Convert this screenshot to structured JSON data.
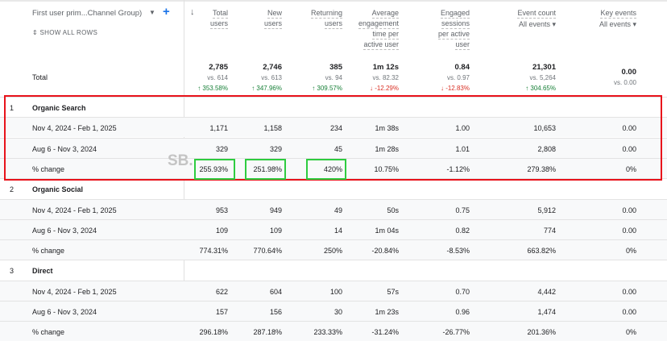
{
  "header": {
    "dimension": "First user prim...Channel Group)",
    "show_all_rows": "SHOW ALL ROWS",
    "columns": [
      {
        "label": [
          "Total",
          "users"
        ]
      },
      {
        "label": [
          "New",
          "users"
        ]
      },
      {
        "label": [
          "Returning",
          "users"
        ]
      },
      {
        "label": [
          "Average",
          "engagement",
          "time per",
          "active user"
        ]
      },
      {
        "label": [
          "Engaged",
          "sessions",
          "per active",
          "user"
        ]
      },
      {
        "label": [
          "Event count"
        ],
        "selector": "All events"
      },
      {
        "label": [
          "Key events"
        ],
        "selector": "All events"
      }
    ]
  },
  "total": {
    "label": "Total",
    "values": [
      "2,785",
      "2,746",
      "385",
      "1m 12s",
      "0.84",
      "21,301",
      "0.00"
    ],
    "vs": [
      "vs. 614",
      "vs. 613",
      "vs. 94",
      "vs. 82.32",
      "vs. 0.97",
      "vs. 5,264",
      "vs. 0.00"
    ],
    "change": [
      "↑ 353.58%",
      "↑ 347.96%",
      "↑ 309.57%",
      "↓ -12.29%",
      "↓ -12.83%",
      "↑ 304.65%",
      ""
    ],
    "change_dir": [
      "up",
      "up",
      "up",
      "down",
      "down",
      "up",
      ""
    ]
  },
  "watermark": "SB.",
  "colors": {
    "highlight_box": "#e8131b",
    "cell_highlight": "#2ecc40",
    "up": "#188038",
    "down": "#d93025"
  },
  "groups": [
    {
      "num": "1",
      "name": "Organic Search",
      "rows": [
        {
          "label": "Nov 4, 2024 - Feb 1, 2025",
          "values": [
            "1,171",
            "1,158",
            "234",
            "1m 38s",
            "1.00",
            "10,653",
            "0.00"
          ]
        },
        {
          "label": "Aug 6 - Nov 3, 2024",
          "values": [
            "329",
            "329",
            "45",
            "1m 28s",
            "1.01",
            "2,808",
            "0.00"
          ]
        },
        {
          "label": "% change",
          "values": [
            "255.93%",
            "251.98%",
            "420%",
            "10.75%",
            "-1.12%",
            "279.38%",
            "0%"
          ]
        }
      ]
    },
    {
      "num": "2",
      "name": "Organic Social",
      "rows": [
        {
          "label": "Nov 4, 2024 - Feb 1, 2025",
          "values": [
            "953",
            "949",
            "49",
            "50s",
            "0.75",
            "5,912",
            "0.00"
          ]
        },
        {
          "label": "Aug 6 - Nov 3, 2024",
          "values": [
            "109",
            "109",
            "14",
            "1m 04s",
            "0.82",
            "774",
            "0.00"
          ]
        },
        {
          "label": "% change",
          "values": [
            "774.31%",
            "770.64%",
            "250%",
            "-20.84%",
            "-8.53%",
            "663.82%",
            "0%"
          ]
        }
      ]
    },
    {
      "num": "3",
      "name": "Direct",
      "rows": [
        {
          "label": "Nov 4, 2024 - Feb 1, 2025",
          "values": [
            "622",
            "604",
            "100",
            "57s",
            "0.70",
            "4,442",
            "0.00"
          ]
        },
        {
          "label": "Aug 6 - Nov 3, 2024",
          "values": [
            "157",
            "156",
            "30",
            "1m 23s",
            "0.96",
            "1,474",
            "0.00"
          ]
        },
        {
          "label": "% change",
          "values": [
            "296.18%",
            "287.18%",
            "233.33%",
            "-31.24%",
            "-26.77%",
            "201.36%",
            "0%"
          ]
        }
      ]
    }
  ]
}
